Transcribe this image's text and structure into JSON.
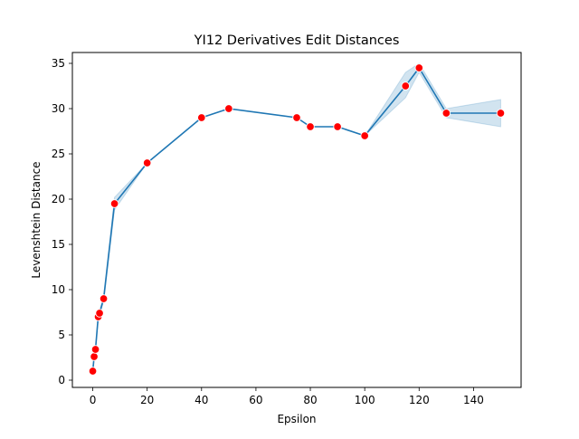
{
  "chart_data": {
    "type": "line",
    "title": "YI12 Derivatives Edit Distances",
    "xlabel": "Epsilon",
    "ylabel": "Levenshtein Distance",
    "xlim": [
      -7.5,
      157.5
    ],
    "ylim": [
      -0.8,
      36.2
    ],
    "xticks": [
      0,
      20,
      40,
      60,
      80,
      100,
      120,
      140
    ],
    "yticks": [
      0,
      5,
      10,
      15,
      20,
      25,
      30,
      35
    ],
    "grid": false,
    "legend": "none",
    "series": [
      {
        "x": [
          0,
          0.5,
          1,
          2,
          2.5,
          4,
          8,
          20,
          40,
          50,
          75,
          80,
          90,
          100,
          115,
          120,
          130,
          150
        ],
        "y": [
          1,
          2.6,
          3.4,
          7.0,
          7.4,
          9.0,
          19.5,
          24.0,
          29.0,
          30.0,
          29.0,
          28.0,
          28.0,
          27.0,
          32.5,
          34.5,
          29.5,
          29.5
        ],
        "ci_low": [
          1,
          2.6,
          3.4,
          6.7,
          7.1,
          8.7,
          18.8,
          24.0,
          29.0,
          30.0,
          29.0,
          28.0,
          28.0,
          27.0,
          31.2,
          34.0,
          29.0,
          28.0
        ],
        "ci_high": [
          1,
          2.6,
          3.4,
          7.3,
          7.7,
          9.3,
          20.2,
          24.0,
          29.0,
          30.0,
          29.0,
          28.0,
          28.0,
          27.0,
          34.0,
          35.0,
          30.0,
          31.0
        ],
        "line_color": "#1f77b4",
        "marker_color": "#ff0000",
        "band_color": "#1f77b4"
      }
    ]
  }
}
